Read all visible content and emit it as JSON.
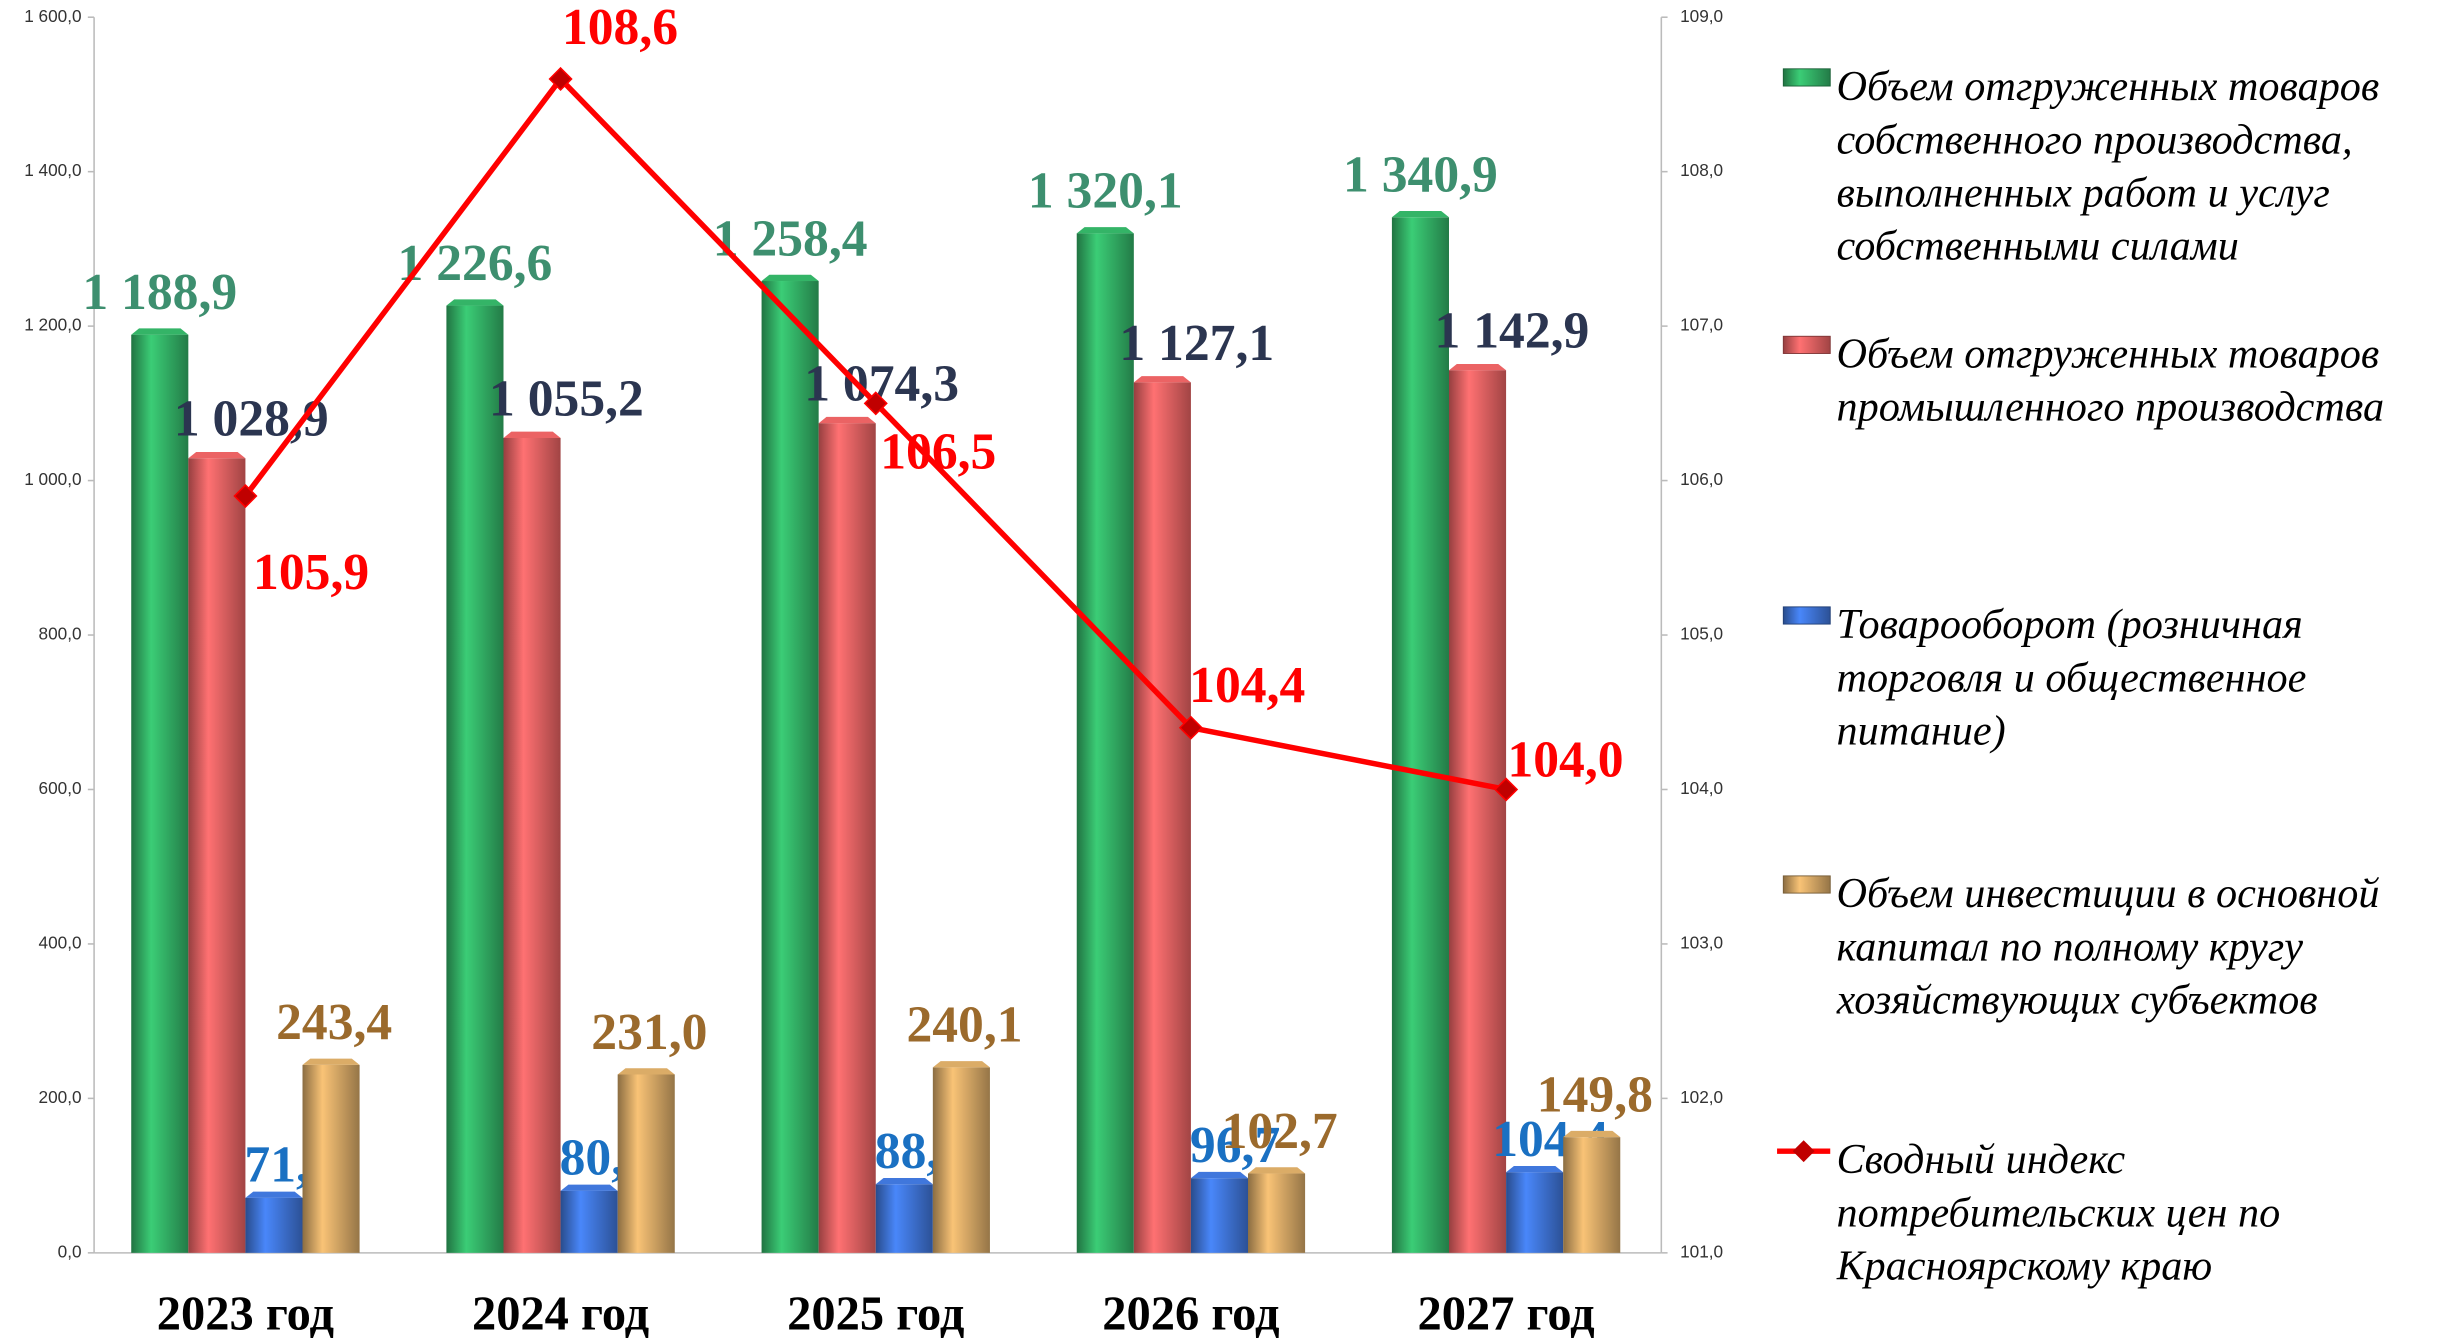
{
  "chart_data": {
    "type": "bar",
    "categories": [
      "2023 год",
      "2024 год",
      "2025 год",
      "2026 год",
      "2027 год"
    ],
    "series": [
      {
        "name": "Объем отгруженных товаров собственного производства, выполненных работ и услуг собственными силами",
        "color": "#2fa45e",
        "values": [
          1188.9,
          1226.6,
          1258.4,
          1320.1,
          1340.9
        ],
        "value_labels": [
          "1 188,9",
          "1 226,6",
          "1 258,4",
          "1 320,1",
          "1 340,9"
        ]
      },
      {
        "name": "Объем  отгруженных товаров промышленного производства",
        "color": "#d65a5b",
        "values": [
          1028.9,
          1055.2,
          1074.3,
          1127.1,
          1142.9
        ],
        "value_labels": [
          "1 028,9",
          "1 055,2",
          "1 074,3",
          "1 127,1",
          "1 142,9"
        ]
      },
      {
        "name": "Товарооборот (розничная торговля и общественное питание)",
        "color": "#3a6cc8",
        "values": [
          71.2,
          80.3,
          88.8,
          96.7,
          104.4
        ],
        "value_labels": [
          "71,2",
          "80,3",
          "88,8",
          "96,7",
          "104,4"
        ]
      },
      {
        "name": "Объем инвестиции в основной капитал по полному кругу хозяйствующих субъектов",
        "color": "#c79c5e",
        "values": [
          243.4,
          231.0,
          240.1,
          102.7,
          149.8
        ],
        "value_labels": [
          "243,4",
          "231,0",
          "240,1",
          "102,7",
          "149,8"
        ]
      },
      {
        "name": "Сводный индекс потребительских цен по Красноярскому краю",
        "color": "#ff0000",
        "type": "line",
        "axis": "y2",
        "values": [
          105.9,
          108.6,
          106.5,
          104.4,
          104.0
        ],
        "value_labels": [
          "105,9",
          "108,6",
          "106,5",
          "104,4",
          "104,0"
        ]
      }
    ],
    "ylim": [
      0,
      1600
    ],
    "yticks": [
      {
        "value": 0,
        "label": "0,0"
      },
      {
        "value": 200,
        "label": "200,0"
      },
      {
        "value": 400,
        "label": "400,0"
      },
      {
        "value": 600,
        "label": "600,0"
      },
      {
        "value": 800,
        "label": "800,0"
      },
      {
        "value": 1000,
        "label": "1 000,0"
      },
      {
        "value": 1200,
        "label": "1 200,0"
      },
      {
        "value": 1400,
        "label": "1 400,0"
      },
      {
        "value": 1600,
        "label": "1 600,0"
      }
    ],
    "y2lim": [
      101,
      109
    ],
    "y2ticks": [
      {
        "value": 101,
        "label": "101,0"
      },
      {
        "value": 102,
        "label": "102,0"
      },
      {
        "value": 103,
        "label": "103,0"
      },
      {
        "value": 104,
        "label": "104,0"
      },
      {
        "value": 105,
        "label": "105,0"
      },
      {
        "value": 106,
        "label": "106,0"
      },
      {
        "value": 107,
        "label": "107,0"
      },
      {
        "value": 108,
        "label": "108,0"
      },
      {
        "value": 109,
        "label": "109,0"
      }
    ],
    "legend": "right"
  }
}
